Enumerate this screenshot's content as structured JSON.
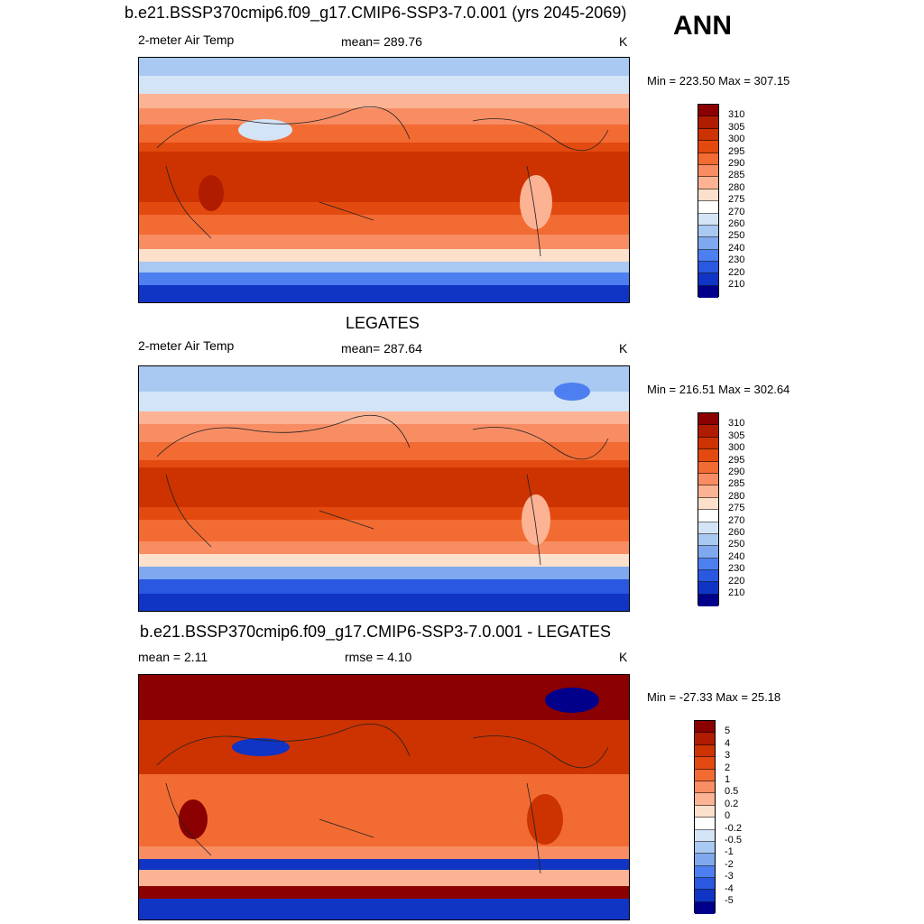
{
  "header": {
    "title": "b.e21.BSSP370cmip6.f09_g17.CMIP6-SSP3-7.0.001 (yrs 2045-2069)",
    "season": "ANN"
  },
  "panels": [
    {
      "title": "",
      "left_label": "2-meter Air Temp",
      "center_label": "mean= 289.76",
      "units": "K",
      "minmax": "Min = 223.50 Max = 307.15",
      "colorbar": {
        "labels": [
          "310",
          "305",
          "300",
          "295",
          "290",
          "285",
          "280",
          "275",
          "270",
          "260",
          "250",
          "240",
          "230",
          "220",
          "210"
        ],
        "colors": [
          "#8b0000",
          "#b01c00",
          "#cc3300",
          "#e34a0f",
          "#f26b33",
          "#f88d63",
          "#fbb394",
          "#fde0cc",
          "#ffffff",
          "#d4e4f7",
          "#a9c8f2",
          "#7fa8ee",
          "#4d7ff0",
          "#2a58e0",
          "#1034c4",
          "#00008b"
        ]
      }
    },
    {
      "title": "LEGATES",
      "left_label": "2-meter Air Temp",
      "center_label": "mean= 287.64",
      "units": "K",
      "minmax": "Min = 216.51 Max = 302.64",
      "colorbar": {
        "labels": [
          "310",
          "305",
          "300",
          "295",
          "290",
          "285",
          "280",
          "275",
          "270",
          "260",
          "250",
          "240",
          "230",
          "220",
          "210"
        ],
        "colors": [
          "#8b0000",
          "#b01c00",
          "#cc3300",
          "#e34a0f",
          "#f26b33",
          "#f88d63",
          "#fbb394",
          "#fde0cc",
          "#ffffff",
          "#d4e4f7",
          "#a9c8f2",
          "#7fa8ee",
          "#4d7ff0",
          "#2a58e0",
          "#1034c4",
          "#00008b"
        ]
      }
    },
    {
      "title": "b.e21.BSSP370cmip6.f09_g17.CMIP6-SSP3-7.0.001 - LEGATES",
      "left_label": "mean =   2.11",
      "center_label": "rmse =   4.10",
      "units": "K",
      "minmax": "Min = -27.33 Max =  25.18",
      "colorbar": {
        "labels": [
          "5",
          "4",
          "3",
          "2",
          "1",
          "0.5",
          "0.2",
          "0",
          "-0.2",
          "-0.5",
          "-1",
          "-2",
          "-3",
          "-4",
          "-5"
        ],
        "colors": [
          "#8b0000",
          "#b01c00",
          "#cc3300",
          "#e34a0f",
          "#f26b33",
          "#f88d63",
          "#fbb394",
          "#fde0cc",
          "#ffffff",
          "#d4e4f7",
          "#a9c8f2",
          "#7fa8ee",
          "#4d7ff0",
          "#2a58e0",
          "#1034c4",
          "#00008b"
        ]
      }
    }
  ]
}
